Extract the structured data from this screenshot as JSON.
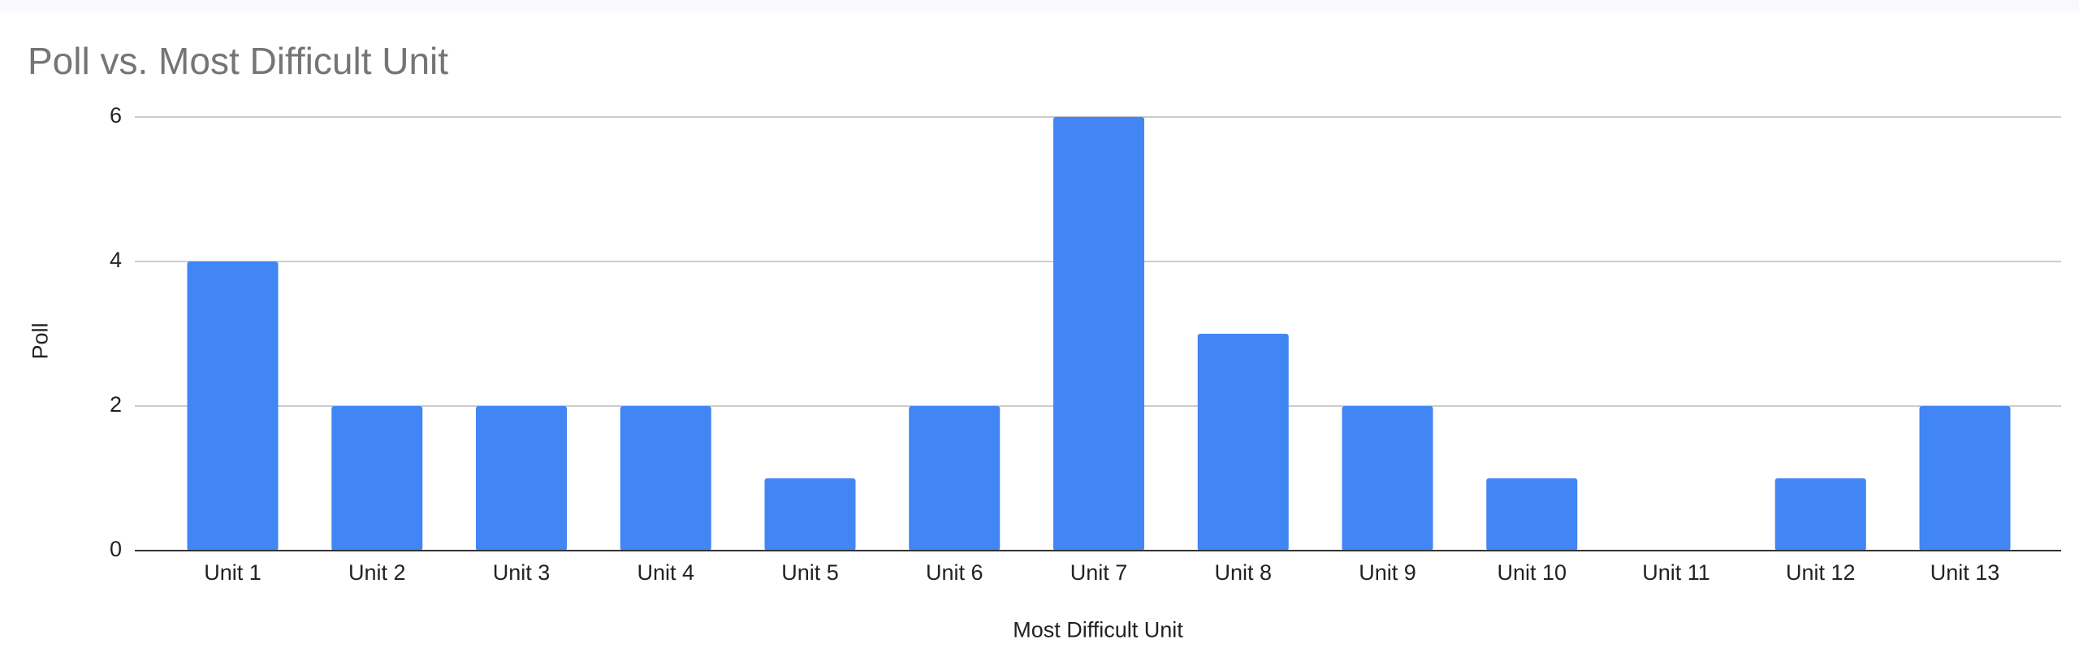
{
  "chart_data": {
    "type": "bar",
    "title": "Poll vs. Most Difficult Unit",
    "xlabel": "Most Difficult Unit",
    "ylabel": "Poll",
    "categories": [
      "Unit 1",
      "Unit 2",
      "Unit 3",
      "Unit 4",
      "Unit 5",
      "Unit 6",
      "Unit 7",
      "Unit 8",
      "Unit 9",
      "Unit 10",
      "Unit 11",
      "Unit 12",
      "Unit 13"
    ],
    "series": [
      {
        "values": [
          4,
          2,
          2,
          2,
          1,
          2,
          6,
          3,
          2,
          1,
          0,
          1,
          2
        ]
      }
    ],
    "ylim": [
      0,
      6
    ],
    "yticks": [
      0,
      2,
      4,
      6
    ],
    "grid": true,
    "legend": "none",
    "colors": {
      "bar": "#4285f4",
      "grid": "#cccccc",
      "axis": "#333333"
    }
  }
}
